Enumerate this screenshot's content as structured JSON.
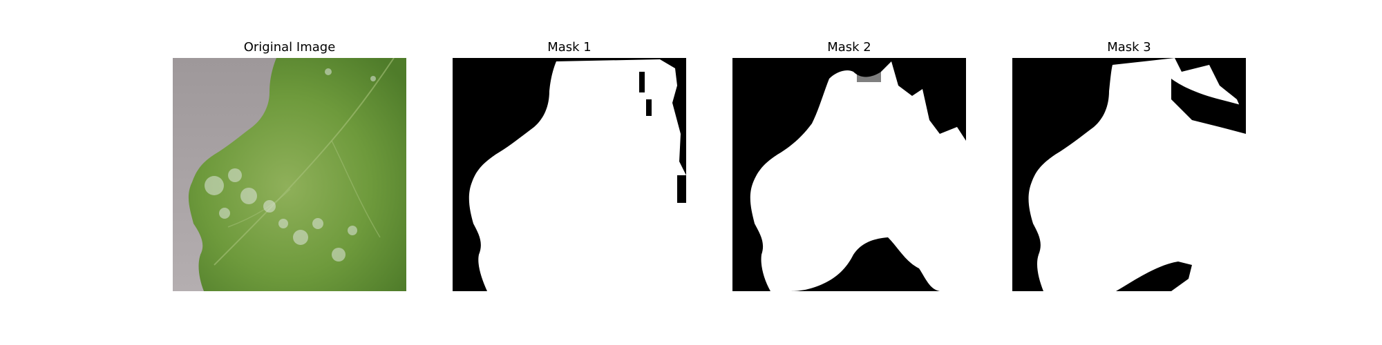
{
  "figure": {
    "panels": [
      {
        "title": "Original Image"
      },
      {
        "title": "Mask 1"
      },
      {
        "title": "Mask 2"
      },
      {
        "title": "Mask 3"
      }
    ]
  },
  "colors": {
    "background": "#ffffff",
    "mask_foreground": "#ffffff",
    "mask_background": "#000000",
    "leaf_green": "#6e9a3c",
    "backdrop_gray": "#a49ea0"
  }
}
